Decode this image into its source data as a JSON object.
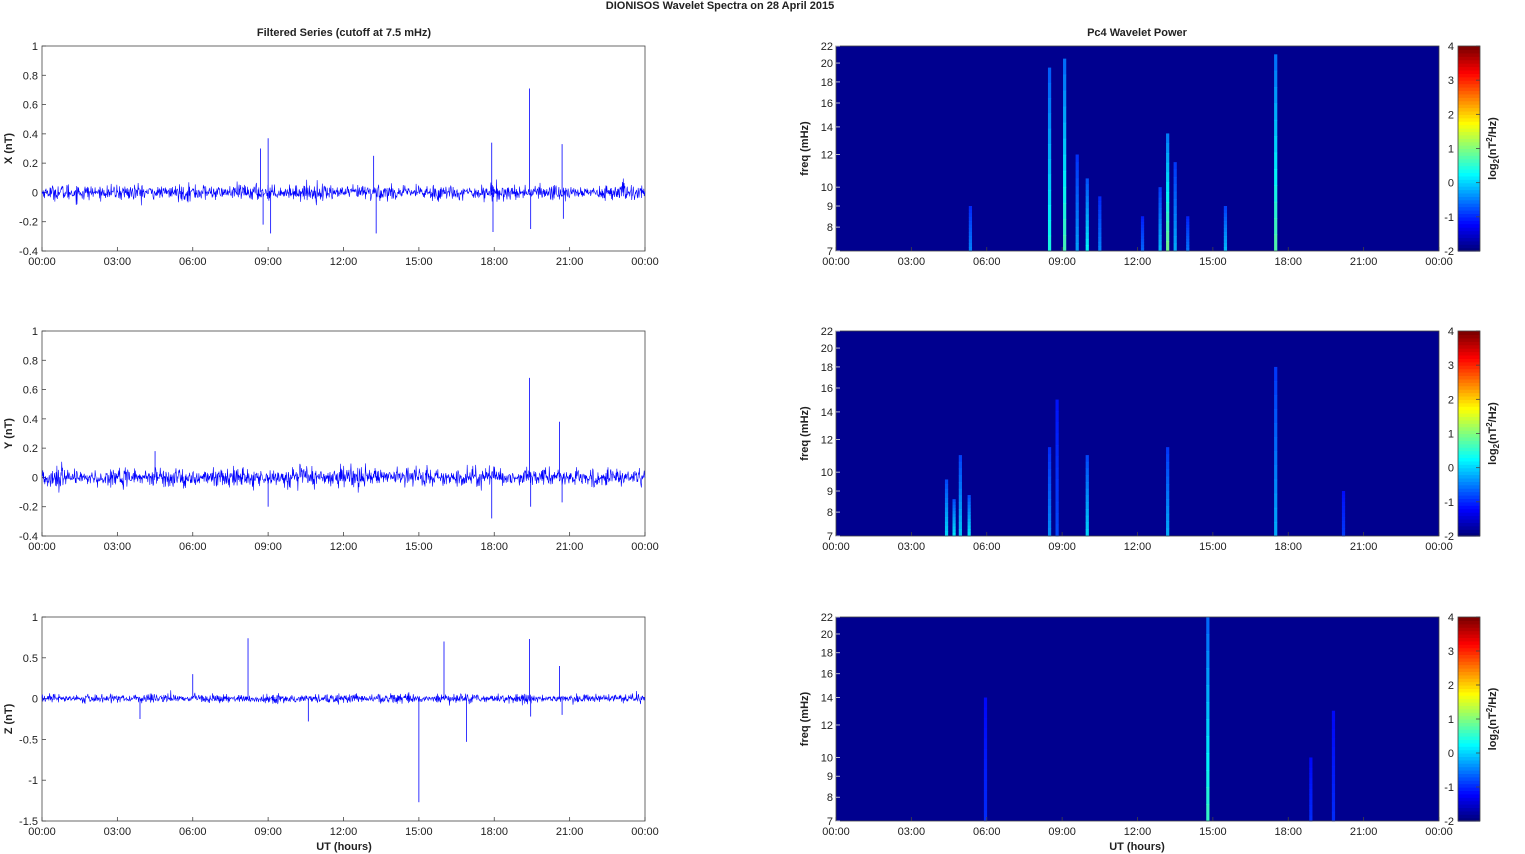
{
  "figure": {
    "suptitle": "DIONISOS Wavelet Spectra on 28 April     2015",
    "left_title": "Filtered Series (cutoff at 7.5 mHz)",
    "right_title": "Pc4 Wavelet Power",
    "xlabel": "UT (hours)"
  },
  "colors": {
    "series_blue": "#0000ff",
    "spectrum_background": "#00008f",
    "axis": "#444444"
  },
  "chart_data": [
    {
      "type": "line",
      "name": "x-component",
      "ylabel": "X (nT)",
      "xlim": [
        0,
        24
      ],
      "x_ticks": [
        "00:00",
        "03:00",
        "06:00",
        "09:00",
        "12:00",
        "15:00",
        "18:00",
        "21:00",
        "00:00"
      ],
      "ylim": [
        -0.4,
        1
      ],
      "y_ticks": [
        "-0.4",
        "-0.2",
        "0",
        "0.2",
        "0.4",
        "0.6",
        "0.8",
        "1"
      ],
      "noise_amplitude": 0.05,
      "spikes": [
        {
          "x": 8.7,
          "y": 0.3
        },
        {
          "x": 8.8,
          "y": -0.22
        },
        {
          "x": 9.0,
          "y": 0.37
        },
        {
          "x": 9.1,
          "y": -0.28
        },
        {
          "x": 13.2,
          "y": 0.25
        },
        {
          "x": 13.3,
          "y": -0.28
        },
        {
          "x": 17.9,
          "y": 0.34
        },
        {
          "x": 17.95,
          "y": -0.27
        },
        {
          "x": 19.4,
          "y": 0.71
        },
        {
          "x": 19.45,
          "y": -0.25
        },
        {
          "x": 20.7,
          "y": 0.33
        },
        {
          "x": 20.75,
          "y": -0.18
        }
      ]
    },
    {
      "type": "line",
      "name": "y-component",
      "ylabel": "Y (nT)",
      "xlim": [
        0,
        24
      ],
      "x_ticks": [
        "00:00",
        "03:00",
        "06:00",
        "09:00",
        "12:00",
        "15:00",
        "18:00",
        "21:00",
        "00:00"
      ],
      "ylim": [
        -0.4,
        1
      ],
      "y_ticks": [
        "-0.4",
        "-0.2",
        "0",
        "0.2",
        "0.4",
        "0.6",
        "0.8",
        "1"
      ],
      "noise_amplitude": 0.06,
      "spikes": [
        {
          "x": 17.9,
          "y": -0.28
        },
        {
          "x": 19.4,
          "y": 0.68
        },
        {
          "x": 19.45,
          "y": -0.2
        },
        {
          "x": 20.6,
          "y": 0.38
        },
        {
          "x": 20.7,
          "y": -0.17
        },
        {
          "x": 4.5,
          "y": 0.18
        },
        {
          "x": 9.0,
          "y": -0.2
        }
      ]
    },
    {
      "type": "line",
      "name": "z-component",
      "ylabel": "Z (nT)",
      "xlim": [
        0,
        24
      ],
      "x_ticks": [
        "00:00",
        "03:00",
        "06:00",
        "09:00",
        "12:00",
        "15:00",
        "18:00",
        "21:00",
        "00:00"
      ],
      "ylim": [
        -1.5,
        1
      ],
      "y_ticks": [
        "-1.5",
        "-1",
        "-0.5",
        "0",
        "0.5",
        "1"
      ],
      "noise_amplitude": 0.05,
      "spikes": [
        {
          "x": 3.9,
          "y": -0.25
        },
        {
          "x": 6.0,
          "y": 0.3
        },
        {
          "x": 8.2,
          "y": 0.74
        },
        {
          "x": 10.6,
          "y": -0.28
        },
        {
          "x": 15.0,
          "y": -1.27
        },
        {
          "x": 16.0,
          "y": 0.7
        },
        {
          "x": 16.9,
          "y": -0.53
        },
        {
          "x": 19.4,
          "y": 0.73
        },
        {
          "x": 19.45,
          "y": -0.22
        },
        {
          "x": 20.6,
          "y": 0.4
        },
        {
          "x": 20.7,
          "y": -0.2
        }
      ]
    },
    {
      "type": "heatmap",
      "name": "x-spectrum",
      "ylabel": "freq (mHz)",
      "xlim": [
        0,
        24
      ],
      "x_ticks": [
        "00:00",
        "03:00",
        "06:00",
        "09:00",
        "12:00",
        "15:00",
        "18:00",
        "21:00",
        "00:00"
      ],
      "y_scale": "log",
      "ylim": [
        7,
        22
      ],
      "y_ticks": [
        7,
        8,
        9,
        10,
        12,
        14,
        16,
        18,
        20,
        22
      ],
      "colorbar_label": "log2(nT2/Hz)",
      "colorbar_ticks": [
        "-2",
        "-1",
        "0",
        "1",
        "2",
        "3",
        "4"
      ],
      "colorbar_range": [
        -2,
        4
      ],
      "features": [
        {
          "x": 5.35,
          "fmax": 9.0,
          "level": -1.0
        },
        {
          "x": 8.5,
          "fmax": 19.5,
          "level": 0.0
        },
        {
          "x": 9.1,
          "fmax": 20.5,
          "level": 0.3
        },
        {
          "x": 9.6,
          "fmax": 12.0,
          "level": -0.8
        },
        {
          "x": 10.0,
          "fmax": 10.5,
          "level": -0.2
        },
        {
          "x": 10.5,
          "fmax": 9.5,
          "level": -1.0
        },
        {
          "x": 12.2,
          "fmax": 8.5,
          "level": -1.2
        },
        {
          "x": 12.9,
          "fmax": 10.0,
          "level": -0.6
        },
        {
          "x": 13.2,
          "fmax": 13.5,
          "level": 0.6
        },
        {
          "x": 13.5,
          "fmax": 11.5,
          "level": -0.7
        },
        {
          "x": 14.0,
          "fmax": 8.5,
          "level": -1.1
        },
        {
          "x": 15.5,
          "fmax": 9.0,
          "level": -0.6
        },
        {
          "x": 17.5,
          "fmax": 21.0,
          "level": 0.4
        }
      ]
    },
    {
      "type": "heatmap",
      "name": "y-spectrum",
      "ylabel": "freq (mHz)",
      "xlim": [
        0,
        24
      ],
      "x_ticks": [
        "00:00",
        "03:00",
        "06:00",
        "09:00",
        "12:00",
        "15:00",
        "18:00",
        "21:00",
        "00:00"
      ],
      "y_scale": "log",
      "ylim": [
        7,
        22
      ],
      "y_ticks": [
        7,
        8,
        9,
        10,
        12,
        14,
        16,
        18,
        20,
        22
      ],
      "colorbar_label": "log2(nT2/Hz)",
      "colorbar_ticks": [
        "-2",
        "-1",
        "0",
        "1",
        "2",
        "3",
        "4"
      ],
      "colorbar_range": [
        -2,
        4
      ],
      "features": [
        {
          "x": 4.4,
          "fmax": 9.6,
          "level": -0.4
        },
        {
          "x": 4.7,
          "fmax": 8.6,
          "level": -0.3
        },
        {
          "x": 4.95,
          "fmax": 11.0,
          "level": -0.5
        },
        {
          "x": 5.3,
          "fmax": 8.8,
          "level": -0.3
        },
        {
          "x": 8.5,
          "fmax": 11.5,
          "level": -0.9
        },
        {
          "x": 8.8,
          "fmax": 15.0,
          "level": -1.4
        },
        {
          "x": 10.0,
          "fmax": 11.0,
          "level": -0.4
        },
        {
          "x": 13.2,
          "fmax": 11.5,
          "level": -0.7
        },
        {
          "x": 17.5,
          "fmax": 18.0,
          "level": -0.7
        },
        {
          "x": 20.2,
          "fmax": 9.0,
          "level": -1.5
        }
      ]
    },
    {
      "type": "heatmap",
      "name": "z-spectrum",
      "ylabel": "freq (mHz)",
      "xlim": [
        0,
        24
      ],
      "x_ticks": [
        "00:00",
        "03:00",
        "06:00",
        "09:00",
        "12:00",
        "15:00",
        "18:00",
        "21:00",
        "00:00"
      ],
      "y_scale": "log",
      "ylim": [
        7,
        22
      ],
      "y_ticks": [
        7,
        8,
        9,
        10,
        12,
        14,
        16,
        18,
        20,
        22
      ],
      "colorbar_label": "log2(nT2/Hz)",
      "colorbar_ticks": [
        "-2",
        "-1",
        "0",
        "1",
        "2",
        "3",
        "4"
      ],
      "colorbar_range": [
        -2,
        4
      ],
      "features": [
        {
          "x": 5.95,
          "fmax": 14.0,
          "level": -1.6
        },
        {
          "x": 14.8,
          "fmax": 22.0,
          "level": 0.2
        },
        {
          "x": 18.9,
          "fmax": 10.0,
          "level": -1.6
        },
        {
          "x": 19.8,
          "fmax": 13.0,
          "level": -1.6
        }
      ]
    }
  ]
}
